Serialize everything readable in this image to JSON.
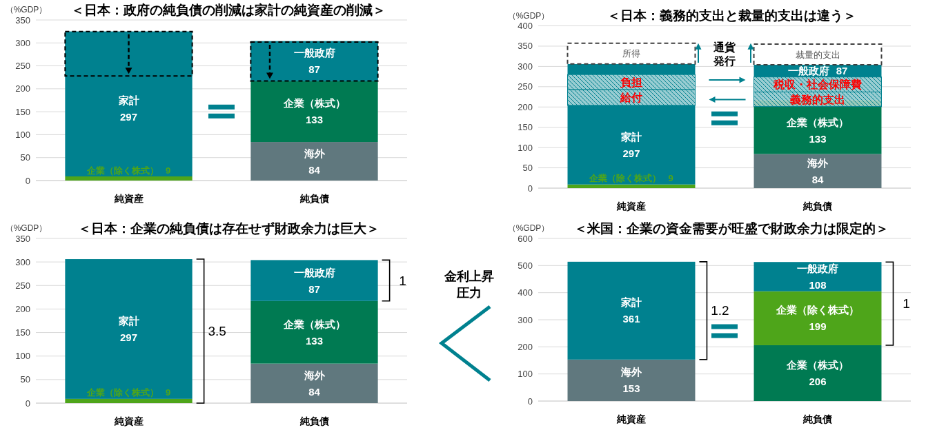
{
  "chart_data": [
    {
      "type": "bar",
      "title": "＜日本：政府の純負債の削減は家計の純資産の削減＞",
      "ylabel": "（%GDP）",
      "categories": [
        "純資産",
        "純負債"
      ],
      "ylim": [
        0,
        350
      ],
      "yticks": [
        0,
        50,
        100,
        150,
        200,
        250,
        300,
        350
      ],
      "grid": "y",
      "data_labels": true,
      "series": [
        {
          "name": "企業（除く株式）",
          "color": "#4ea51a",
          "values": [
            9,
            null
          ],
          "base": [
            0,
            null
          ]
        },
        {
          "name": "海外",
          "color": "#60787e",
          "values": [
            null,
            84
          ],
          "base": [
            null,
            0
          ]
        },
        {
          "name": "家計",
          "color": "#00818f",
          "values": [
            297,
            null
          ],
          "base": [
            9,
            null
          ]
        },
        {
          "name": "企業（株式）",
          "color": "#007a52",
          "values": [
            null,
            133
          ],
          "base": [
            null,
            84
          ]
        },
        {
          "name": "一般政府",
          "color": "#00818f",
          "values": [
            null,
            87
          ],
          "base": [
            null,
            217
          ]
        },
        {
          "color": "#00818f",
          "values": [
            97,
            85
          ],
          "base": [
            228,
            217
          ],
          "line_style": "dashed",
          "value_labels": [
            null,
            null
          ]
        }
      ]
    },
    {
      "type": "bar",
      "title": "＜日本：義務的支出と裁量的支出は違う＞",
      "ylabel": "（%GDP）",
      "categories": [
        "純資産",
        "純負債"
      ],
      "ylim": [
        0,
        400
      ],
      "yticks": [
        0,
        50,
        100,
        150,
        200,
        250,
        300,
        350,
        400
      ],
      "grid": "y",
      "data_labels": true,
      "annotations": [
        "通貨発行"
      ],
      "series": [
        {
          "name": "企業（除く株式）",
          "color": "#4ea51a",
          "values": [
            9,
            null
          ],
          "base": [
            0,
            null
          ]
        },
        {
          "name": "海外",
          "color": "#60787e",
          "values": [
            null,
            84
          ],
          "base": [
            null,
            0
          ]
        },
        {
          "name": "家計",
          "color": "#00818f",
          "values": [
            297,
            null
          ],
          "base": [
            9,
            null
          ]
        },
        {
          "name": "企業（株式）",
          "color": "#007a52",
          "values": [
            null,
            133
          ],
          "base": [
            null,
            84
          ]
        },
        {
          "name": "一般政府",
          "color": "#00818f",
          "values": [
            null,
            87
          ],
          "base": [
            null,
            217
          ]
        },
        {
          "name": "給付",
          "color": "#00818f",
          "values": [
            39,
            null
          ],
          "base": [
            204,
            null
          ],
          "line_style": "solid",
          "value_labels": [
            null,
            null
          ]
        },
        {
          "name": "負担",
          "color": "#00818f",
          "values": [
            37,
            null
          ],
          "base": [
            243,
            null
          ],
          "line_style": "solid",
          "value_labels": [
            null,
            null
          ]
        },
        {
          "name": "義務的支出",
          "color": "#00818f",
          "values": [
            null,
            36
          ],
          "base": [
            null,
            201
          ],
          "line_style": "solid",
          "value_labels": [
            null,
            null
          ]
        },
        {
          "name": "税収・社会保障費",
          "color": "#00818f",
          "values": [
            null,
            37
          ],
          "base": [
            null,
            237
          ],
          "line_style": "solid",
          "value_labels": [
            null,
            null
          ]
        },
        {
          "name": "所得",
          "color": "#ffffff",
          "values": [
            51,
            null
          ],
          "base": [
            306,
            null
          ],
          "line_style": "dashed",
          "value_labels": [
            null,
            null
          ]
        },
        {
          "name": "裁量的支出",
          "color": "#ffffff",
          "values": [
            null,
            51
          ],
          "base": [
            null,
            304
          ],
          "line_style": "dashed",
          "value_labels": [
            null,
            null
          ]
        }
      ]
    },
    {
      "type": "bar",
      "title": "＜日本：企業の純負債は存在せず財政余力は巨大＞",
      "ylabel": "（%GDP）",
      "categories": [
        "純資産",
        "純負債"
      ],
      "ylim": [
        0,
        350
      ],
      "yticks": [
        0,
        50,
        100,
        150,
        200,
        250,
        300,
        350
      ],
      "grid": "y",
      "data_labels": true,
      "annotations": [
        "3.5",
        "1",
        "金利上昇圧力"
      ],
      "series": [
        {
          "name": "企業（除く株式）",
          "color": "#4ea51a",
          "values": [
            9,
            null
          ],
          "base": [
            0,
            null
          ]
        },
        {
          "name": "海外",
          "color": "#60787e",
          "values": [
            null,
            84
          ],
          "base": [
            null,
            0
          ]
        },
        {
          "name": "家計",
          "color": "#00818f",
          "values": [
            297,
            null
          ],
          "base": [
            9,
            null
          ]
        },
        {
          "name": "企業（株式）",
          "color": "#007a52",
          "values": [
            null,
            133
          ],
          "base": [
            null,
            84
          ]
        },
        {
          "name": "一般政府",
          "color": "#00818f",
          "values": [
            null,
            87
          ],
          "base": [
            null,
            217
          ]
        }
      ]
    },
    {
      "type": "bar",
      "title": "＜米国：企業の資金需要が旺盛で財政余力は限定的＞",
      "ylabel": "（%GDP）",
      "categories": [
        "純資産",
        "純負債"
      ],
      "ylim": [
        0,
        600
      ],
      "yticks": [
        0,
        100,
        200,
        300,
        400,
        500,
        600
      ],
      "grid": "y",
      "data_labels": true,
      "annotations": [
        "1.2",
        "1"
      ],
      "series": [
        {
          "name": "海外",
          "color": "#60787e",
          "values": [
            153,
            null
          ],
          "base": [
            0,
            null
          ]
        },
        {
          "name": "企業（株式）",
          "color": "#007a52",
          "values": [
            null,
            206
          ],
          "base": [
            null,
            0
          ]
        },
        {
          "name": "家計",
          "color": "#00818f",
          "values": [
            361,
            null
          ],
          "base": [
            153,
            null
          ]
        },
        {
          "name": "企業（除く株式）",
          "color": "#4ea51a",
          "values": [
            null,
            199
          ],
          "base": [
            null,
            206
          ]
        },
        {
          "name": "一般政府",
          "color": "#00818f",
          "values": [
            null,
            108
          ],
          "base": [
            null,
            405
          ]
        }
      ]
    }
  ]
}
